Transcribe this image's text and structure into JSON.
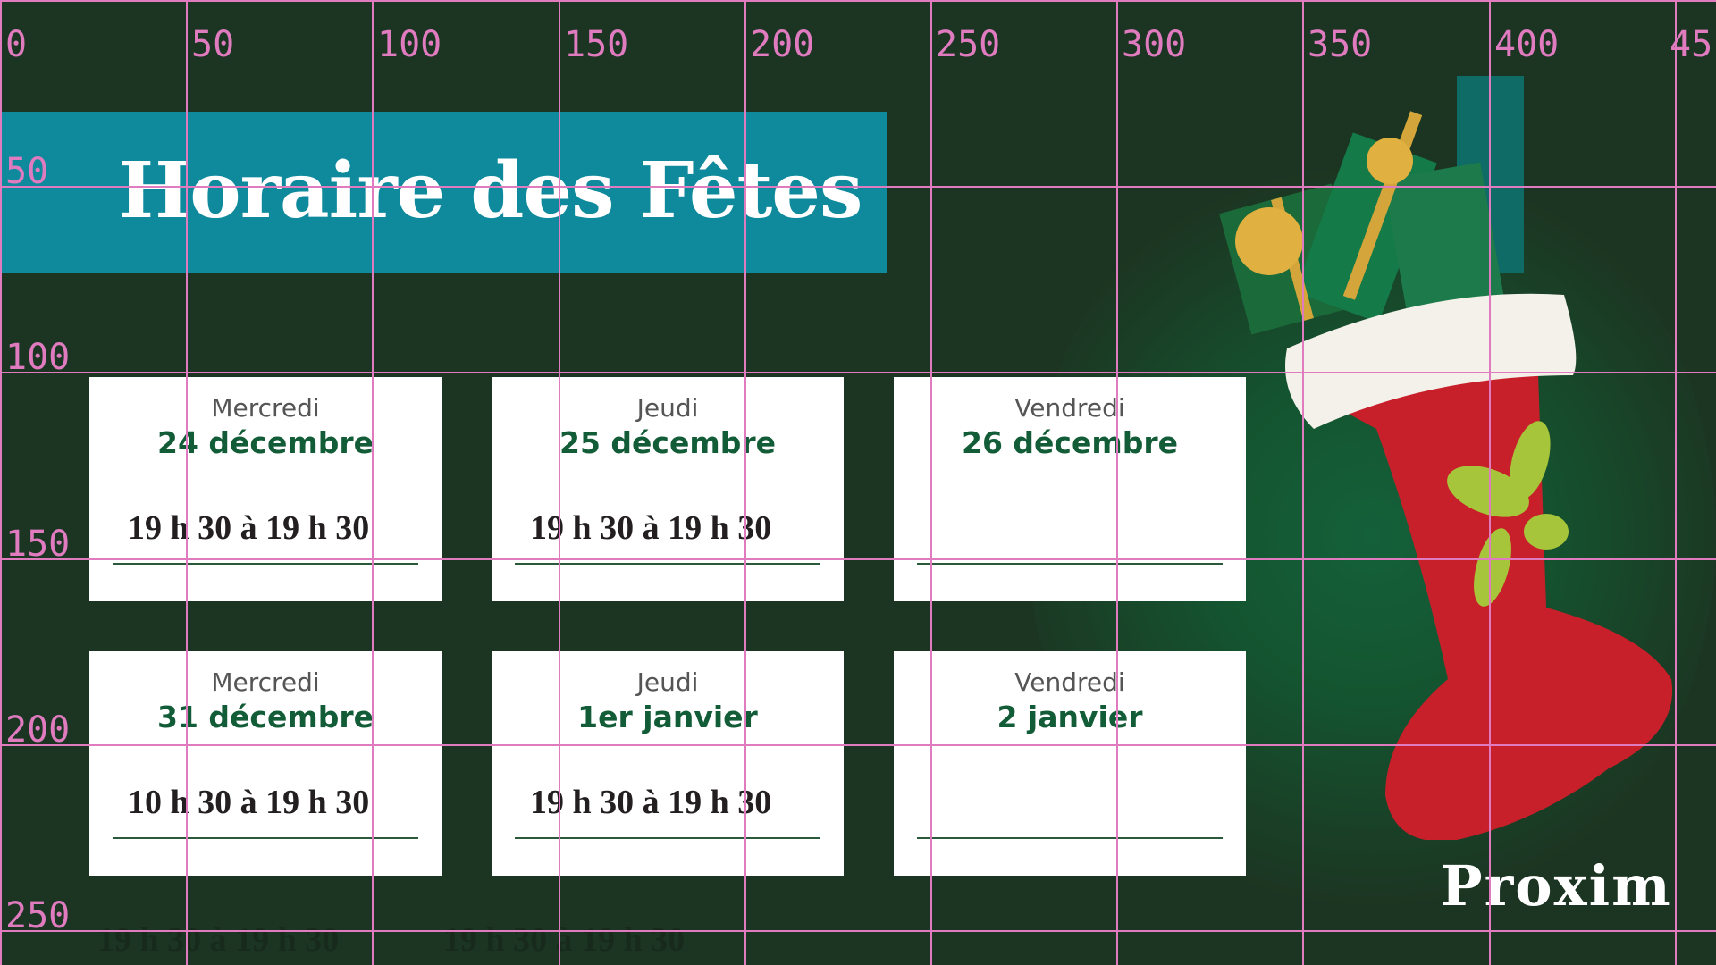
{
  "title": "Horaire des Fêtes",
  "cards": [
    {
      "day": "Mercredi",
      "date": "24 décembre"
    },
    {
      "day": "Jeudi",
      "date": "25 décembre"
    },
    {
      "day": "Vendredi",
      "date": "26 décembre"
    },
    {
      "day": "Mercredi",
      "date": "31 décembre"
    },
    {
      "day": "Jeudi",
      "date": "1er janvier"
    },
    {
      "day": "Vendredi",
      "date": "2 janvier"
    }
  ],
  "times": [
    "19 h 30 à 19 h 30",
    "19 h 30 à 19 h 30",
    "10 h 30 à 19 h 30",
    "19 h 30 à 19 h 30",
    "19 h 30 à 19 h 30",
    "19 h 30 à 19 h 30"
  ],
  "grid": {
    "x_labels": [
      "0",
      "50",
      "100",
      "150",
      "200",
      "250",
      "300",
      "350",
      "400",
      "45"
    ],
    "y_labels": [
      "50",
      "100",
      "150",
      "200",
      "250"
    ]
  },
  "logo": "Proxim",
  "colors": {
    "background": "#1c3522",
    "banner": "#0f8a9c",
    "date_text": "#135c38",
    "grid": "#e07bc0",
    "logo_leaf": "#b5cc3a"
  }
}
